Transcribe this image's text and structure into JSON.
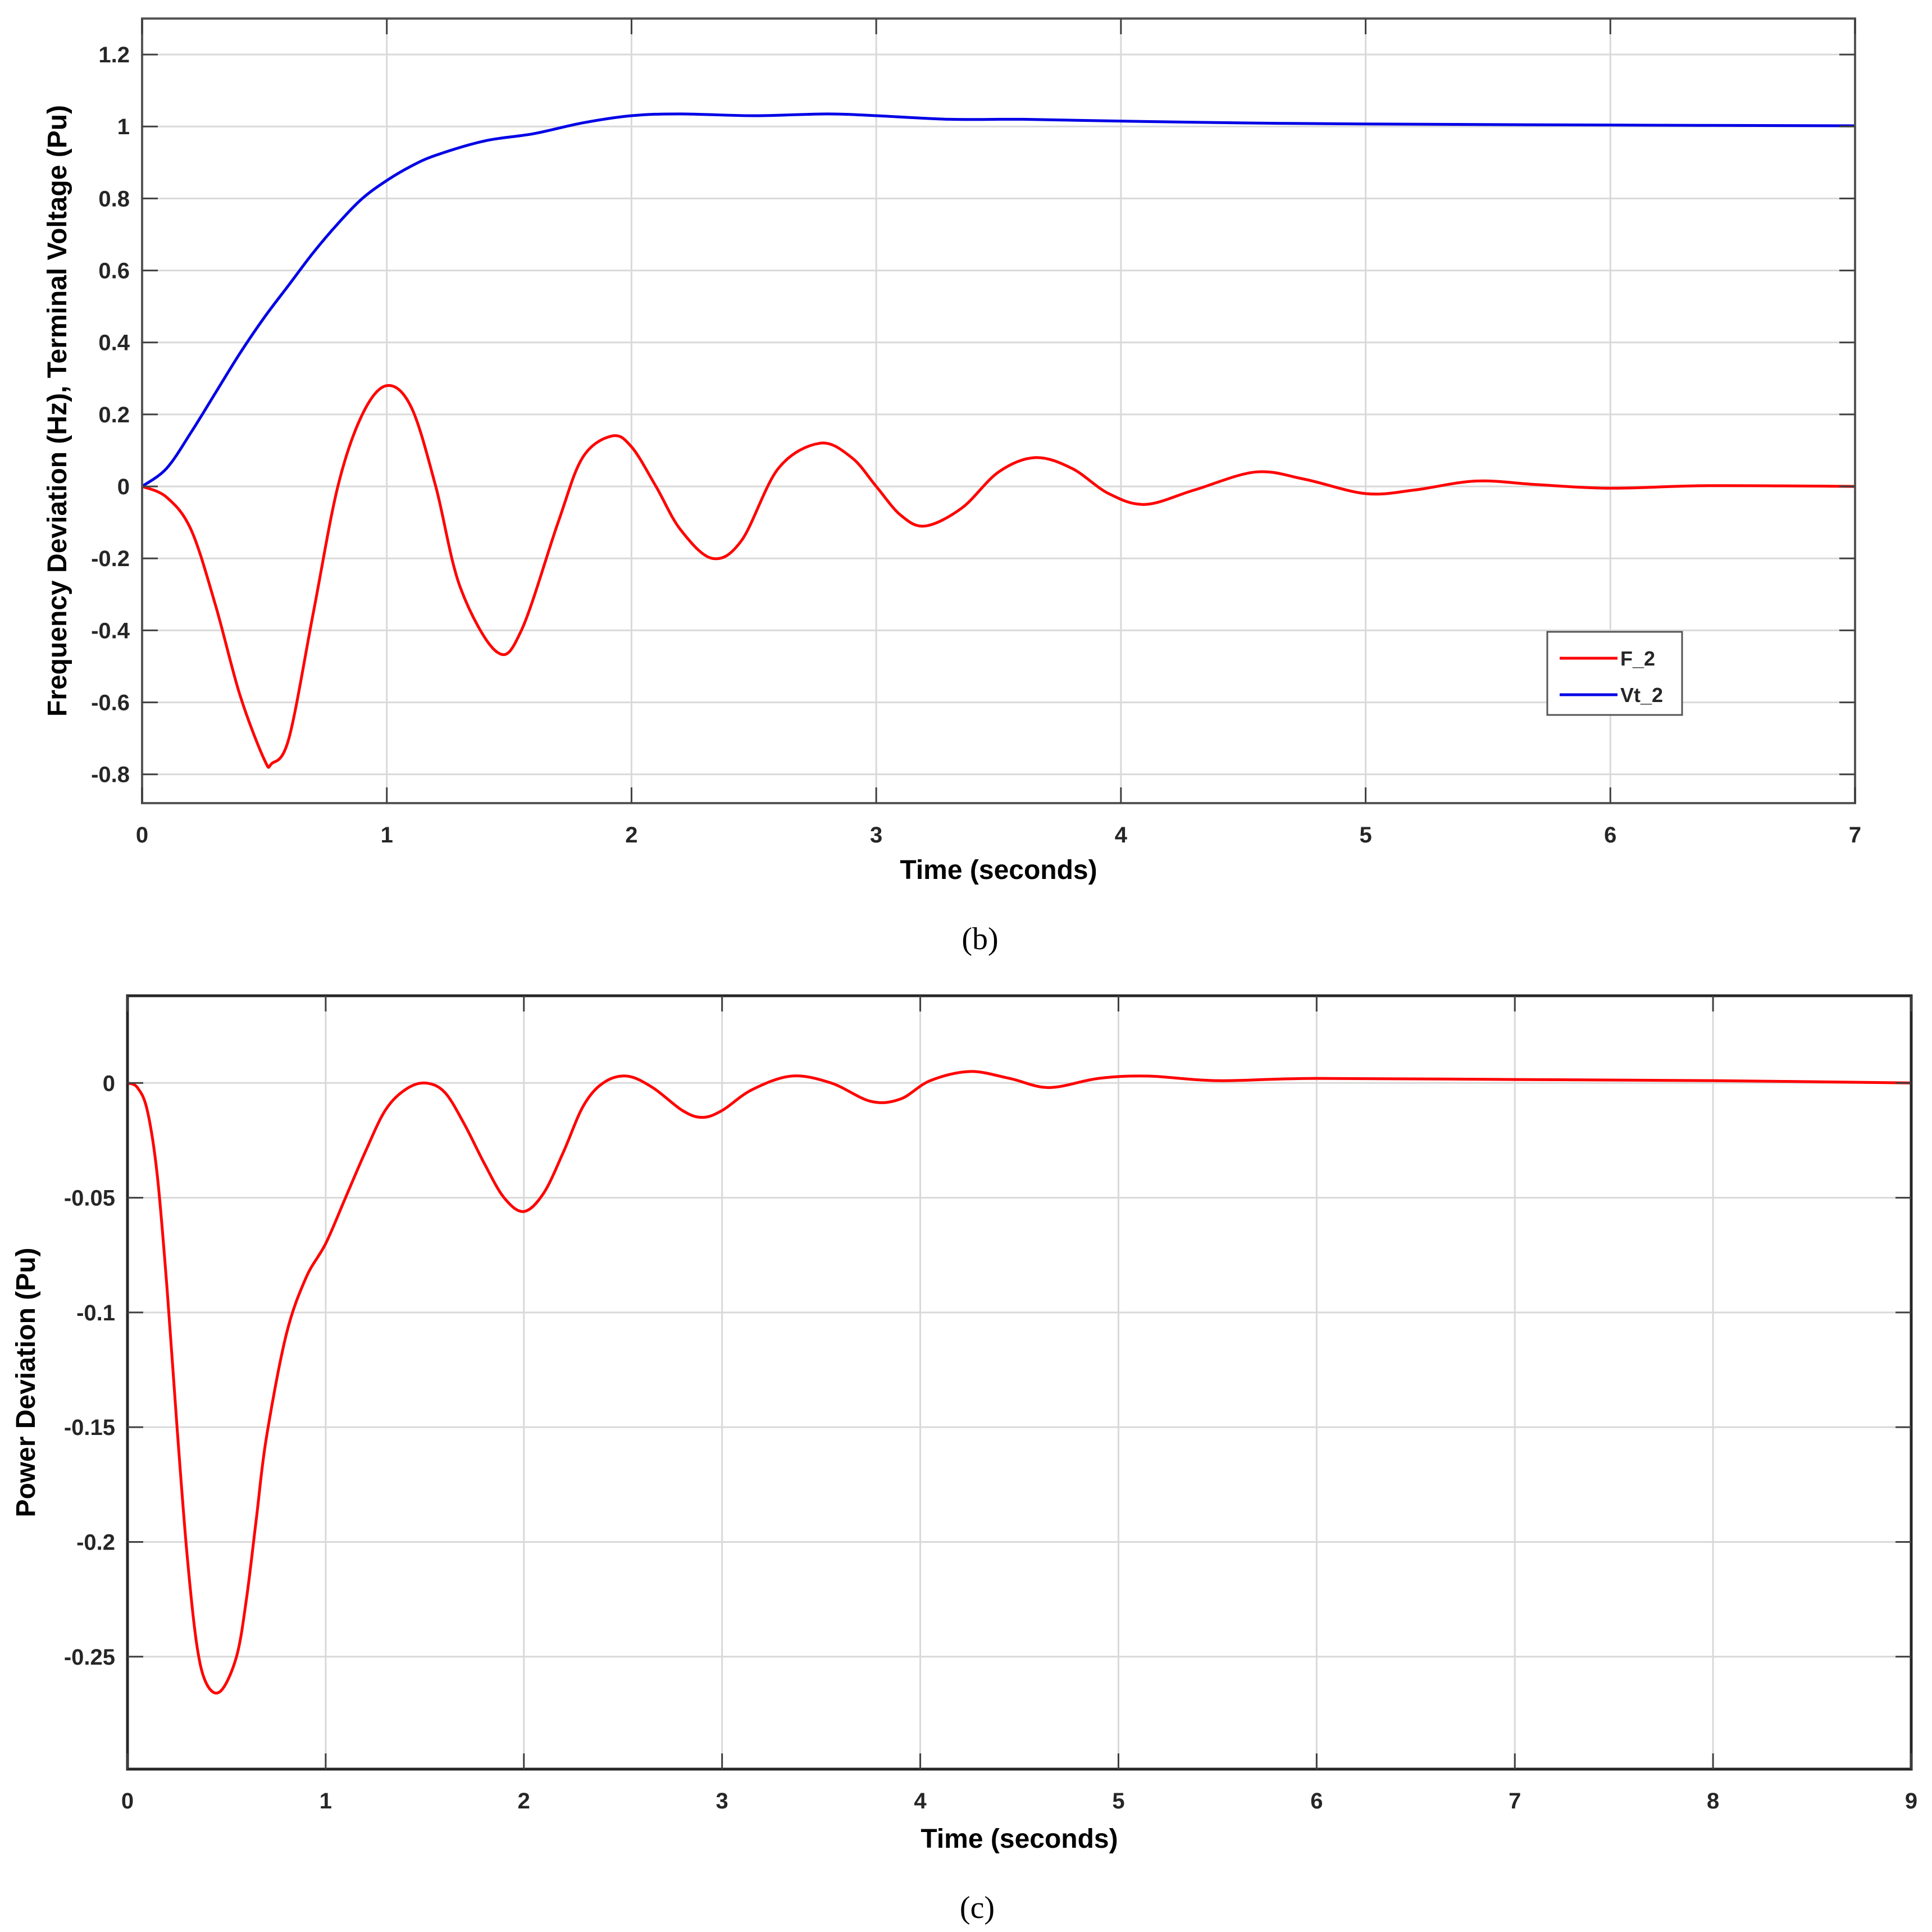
{
  "colors": {
    "red": "#ff0000",
    "blue": "#0000e6",
    "grid": "#d9d9d9",
    "axis": "#404040"
  },
  "chart_data": [
    {
      "id": "b",
      "type": "line",
      "caption": "(b)",
      "title": "",
      "xlabel": "Time (seconds)",
      "ylabel": "Frequency Deviation (Hz), Terminal Voltage (Pu)",
      "xlim": [
        0,
        7
      ],
      "ylim": [
        -0.88,
        1.3
      ],
      "xticks": [
        0,
        1,
        2,
        3,
        4,
        5,
        6,
        7
      ],
      "yticks": [
        -0.8,
        -0.6,
        -0.4,
        -0.2,
        0,
        0.2,
        0.4,
        0.6,
        0.8,
        1,
        1.2
      ],
      "ytick_labels": [
        "-0.8",
        "-0.6",
        "-0.4",
        "-0.2",
        "0",
        "0.2",
        "0.4",
        "0.6",
        "0.8",
        "1",
        "1.2"
      ],
      "grid": true,
      "legend": {
        "position": "lower right",
        "entries": [
          "F_2",
          "Vt_2"
        ]
      },
      "series": [
        {
          "name": "F_2",
          "color": "#ff0000",
          "x": [
            0,
            0.1,
            0.2,
            0.3,
            0.4,
            0.5,
            0.53,
            0.6,
            0.7,
            0.8,
            0.9,
            1.0,
            1.1,
            1.2,
            1.3,
            1.45,
            1.55,
            1.7,
            1.8,
            1.92,
            2.0,
            2.1,
            2.2,
            2.33,
            2.45,
            2.6,
            2.77,
            2.9,
            3.0,
            3.1,
            3.2,
            3.35,
            3.5,
            3.65,
            3.8,
            3.95,
            4.1,
            4.3,
            4.55,
            4.75,
            5.0,
            5.2,
            5.45,
            5.7,
            6.0,
            6.4,
            7.0
          ],
          "values": [
            0,
            -0.03,
            -0.12,
            -0.33,
            -0.58,
            -0.76,
            -0.77,
            -0.7,
            -0.35,
            0.0,
            0.2,
            0.28,
            0.22,
            0.0,
            -0.28,
            -0.46,
            -0.4,
            -0.1,
            0.08,
            0.14,
            0.11,
            0.0,
            -0.12,
            -0.2,
            -0.15,
            0.05,
            0.12,
            0.08,
            0.0,
            -0.08,
            -0.11,
            -0.06,
            0.04,
            0.08,
            0.05,
            -0.02,
            -0.05,
            -0.01,
            0.04,
            0.02,
            -0.02,
            -0.01,
            0.015,
            0.005,
            -0.005,
            0.002,
            0
          ]
        },
        {
          "name": "Vt_2",
          "color": "#0000e6",
          "x": [
            0,
            0.1,
            0.2,
            0.3,
            0.4,
            0.5,
            0.6,
            0.7,
            0.8,
            0.9,
            1.0,
            1.1,
            1.2,
            1.4,
            1.6,
            1.8,
            2.0,
            2.2,
            2.5,
            2.8,
            3.0,
            3.3,
            3.6,
            4.0,
            4.5,
            5.0,
            6.0,
            7.0
          ],
          "values": [
            0,
            0.05,
            0.15,
            0.26,
            0.37,
            0.47,
            0.56,
            0.65,
            0.73,
            0.8,
            0.85,
            0.89,
            0.92,
            0.96,
            0.98,
            1.01,
            1.03,
            1.035,
            1.03,
            1.035,
            1.03,
            1.02,
            1.02,
            1.015,
            1.01,
            1.007,
            1.004,
            1.002
          ]
        }
      ]
    },
    {
      "id": "c",
      "type": "line",
      "caption": "(c)",
      "title": "",
      "xlabel": "Time (seconds)",
      "ylabel": "Power Deviation (Pu)",
      "xlim": [
        0,
        9
      ],
      "ylim": [
        -0.299,
        0.038
      ],
      "xticks": [
        0,
        1,
        2,
        3,
        4,
        5,
        6,
        7,
        8,
        9
      ],
      "yticks": [
        -0.25,
        -0.2,
        -0.15,
        -0.1,
        -0.05,
        0
      ],
      "ytick_labels": [
        "-0.25",
        "-0.2",
        "-0.15",
        "-0.1",
        "-0.05",
        "0"
      ],
      "grid": true,
      "series": [
        {
          "name": "Power Deviation",
          "color": "#ff0000",
          "x": [
            0,
            0.05,
            0.1,
            0.15,
            0.2,
            0.25,
            0.3,
            0.35,
            0.4,
            0.47,
            0.55,
            0.6,
            0.65,
            0.7,
            0.8,
            0.9,
            1.0,
            1.1,
            1.2,
            1.3,
            1.4,
            1.5,
            1.6,
            1.7,
            1.8,
            1.9,
            2.0,
            2.1,
            2.2,
            2.3,
            2.4,
            2.52,
            2.65,
            2.8,
            2.9,
            3.0,
            3.15,
            3.35,
            3.55,
            3.75,
            3.9,
            4.05,
            4.25,
            4.45,
            4.65,
            4.9,
            5.15,
            5.5,
            6.0,
            7.0,
            8.0,
            9.0
          ],
          "values": [
            0,
            -0.002,
            -0.012,
            -0.04,
            -0.09,
            -0.15,
            -0.205,
            -0.245,
            -0.262,
            -0.265,
            -0.25,
            -0.225,
            -0.19,
            -0.155,
            -0.11,
            -0.085,
            -0.07,
            -0.05,
            -0.03,
            -0.012,
            -0.003,
            0,
            -0.004,
            -0.018,
            -0.035,
            -0.05,
            -0.056,
            -0.048,
            -0.03,
            -0.01,
            0.0,
            0.003,
            -0.002,
            -0.012,
            -0.015,
            -0.012,
            -0.003,
            0.003,
            0.0,
            -0.008,
            -0.007,
            0.001,
            0.005,
            0.002,
            -0.002,
            0.002,
            0.003,
            0.001,
            0.002,
            0.0015,
            0.001,
            0.0
          ]
        }
      ]
    }
  ]
}
